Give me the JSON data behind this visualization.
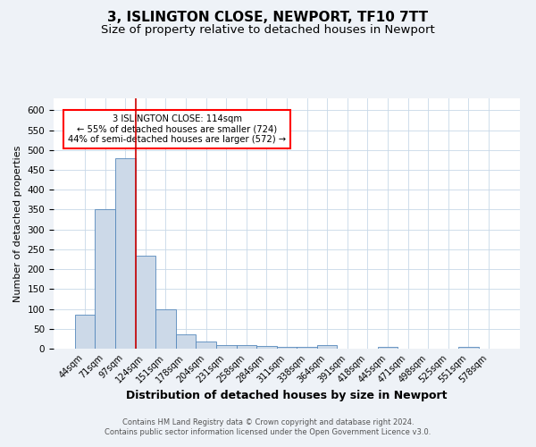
{
  "title": "3, ISLINGTON CLOSE, NEWPORT, TF10 7TT",
  "subtitle": "Size of property relative to detached houses in Newport",
  "xlabel": "Distribution of detached houses by size in Newport",
  "ylabel": "Number of detached properties",
  "bar_color": "#ccd9e8",
  "bar_edge_color": "#5588bb",
  "bins": [
    "44sqm",
    "71sqm",
    "97sqm",
    "124sqm",
    "151sqm",
    "178sqm",
    "204sqm",
    "231sqm",
    "258sqm",
    "284sqm",
    "311sqm",
    "338sqm",
    "364sqm",
    "391sqm",
    "418sqm",
    "445sqm",
    "471sqm",
    "498sqm",
    "525sqm",
    "551sqm",
    "578sqm"
  ],
  "values": [
    85,
    350,
    480,
    235,
    98,
    37,
    19,
    8,
    9,
    6,
    4,
    4,
    8,
    0,
    0,
    5,
    0,
    0,
    0,
    5,
    0
  ],
  "ylim": [
    0,
    630
  ],
  "yticks": [
    0,
    50,
    100,
    150,
    200,
    250,
    300,
    350,
    400,
    450,
    500,
    550,
    600
  ],
  "vline_x_idx": 2.5,
  "vline_color": "#cc0000",
  "annotation_box_text": "3 ISLINGTON CLOSE: 114sqm\n← 55% of detached houses are smaller (724)\n44% of semi-detached houses are larger (572) →",
  "footer_text": "Contains HM Land Registry data © Crown copyright and database right 2024.\nContains public sector information licensed under the Open Government Licence v3.0.",
  "background_color": "#eef2f7",
  "plot_background": "#ffffff",
  "title_fontsize": 11,
  "subtitle_fontsize": 9.5,
  "xlabel_fontsize": 9,
  "ylabel_fontsize": 8,
  "tick_fontsize": 7
}
